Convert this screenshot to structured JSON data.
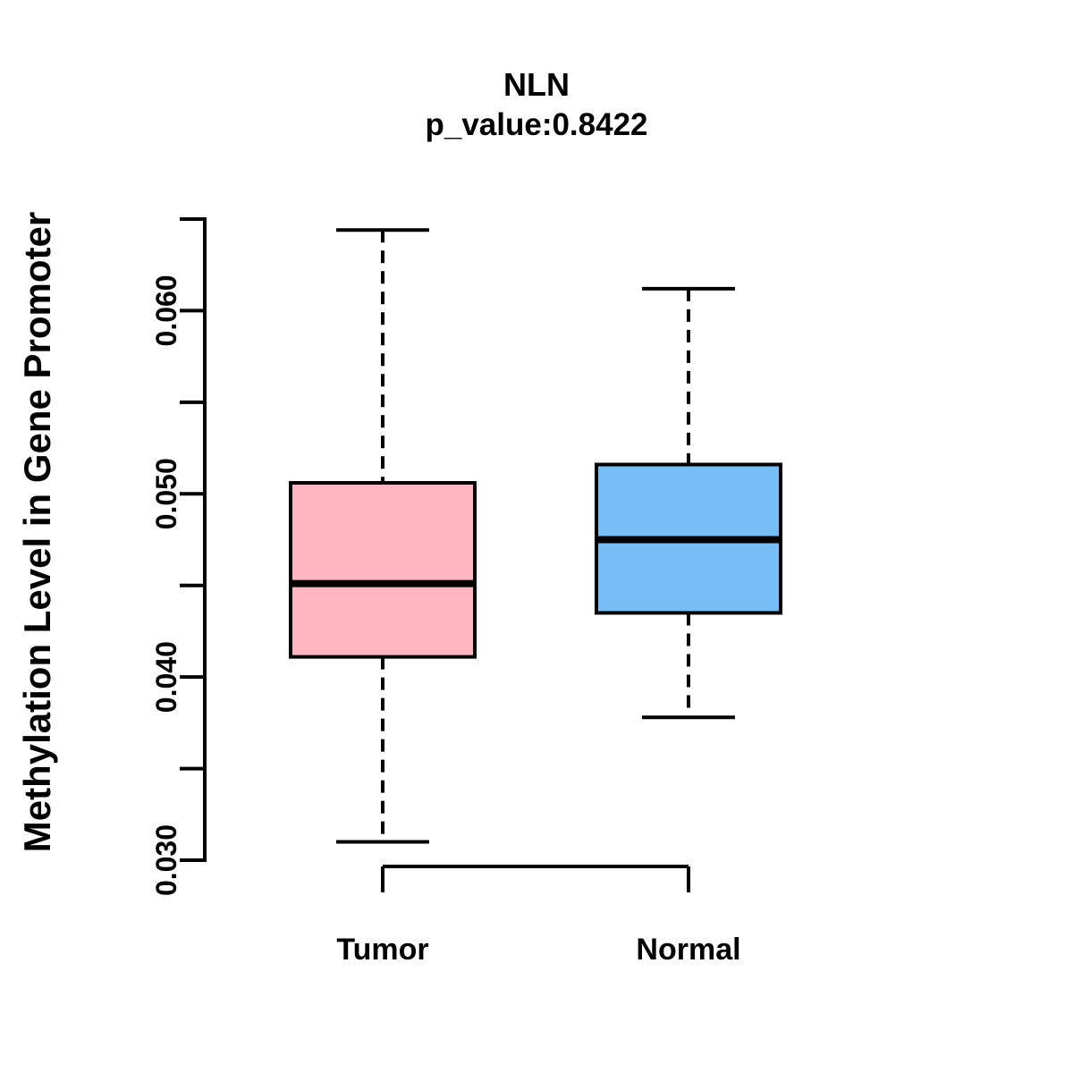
{
  "chart_data": {
    "type": "boxplot",
    "title": "NLN",
    "subtitle": "p_value:0.8422",
    "p_value": "0.8422",
    "ylabel": "Methylation Level in Gene Promoter",
    "xlabel": "",
    "categories": [
      "Tumor",
      "Normal"
    ],
    "series": [
      {
        "name": "Tumor",
        "box_color": "#FFB6C1",
        "whisker_low": 0.031,
        "q1": 0.0411,
        "median": 0.0451,
        "q3": 0.0506,
        "whisker_high": 0.0644
      },
      {
        "name": "Normal",
        "box_color": "#75BFF6",
        "whisker_low": 0.0378,
        "q1": 0.0435,
        "median": 0.0475,
        "q3": 0.0516,
        "whisker_high": 0.0612
      }
    ],
    "y_axis": {
      "ylim": [
        0.03,
        0.065
      ],
      "ticks": [
        {
          "value": 0.03,
          "label": "0.030"
        },
        {
          "value": 0.035,
          "label": ""
        },
        {
          "value": 0.04,
          "label": "0.040"
        },
        {
          "value": 0.045,
          "label": ""
        },
        {
          "value": 0.05,
          "label": "0.050"
        },
        {
          "value": 0.055,
          "label": ""
        },
        {
          "value": 0.06,
          "label": "0.060"
        },
        {
          "value": 0.065,
          "label": ""
        }
      ]
    },
    "x_axis": {
      "bracket": true
    },
    "grid": false,
    "legend": "none",
    "line_color": "#000000",
    "background_color": "#ffffff"
  }
}
